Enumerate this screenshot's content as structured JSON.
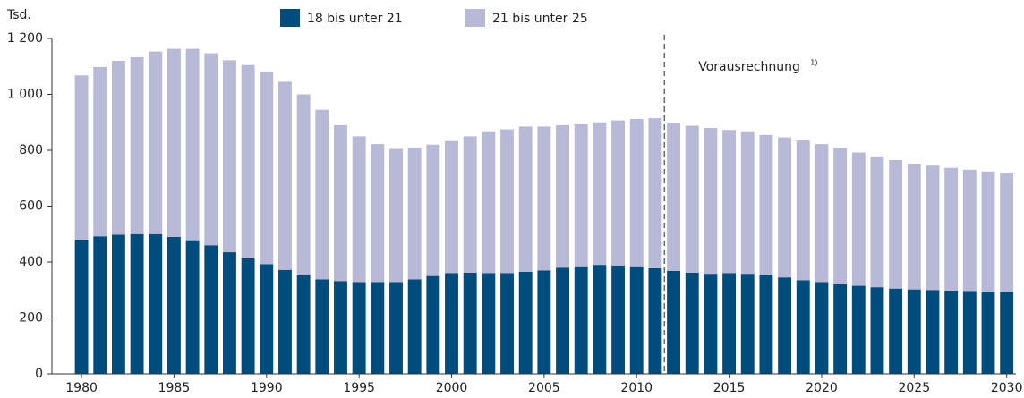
{
  "chart_data": {
    "type": "stacked_bar",
    "y_label": "Tsd.",
    "x": [
      1980,
      1981,
      1982,
      1983,
      1984,
      1985,
      1986,
      1987,
      1988,
      1989,
      1990,
      1991,
      1992,
      1993,
      1994,
      1995,
      1996,
      1997,
      1998,
      1999,
      2000,
      2001,
      2002,
      2003,
      2004,
      2005,
      2006,
      2007,
      2008,
      2009,
      2010,
      2011,
      2012,
      2013,
      2014,
      2015,
      2016,
      2017,
      2018,
      2019,
      2020,
      2021,
      2022,
      2023,
      2024,
      2025,
      2026,
      2027,
      2028,
      2029,
      2030
    ],
    "series": [
      {
        "name": "18 bis unter 21",
        "color": "#004c7d",
        "values": [
          480,
          492,
          498,
          500,
          500,
          490,
          478,
          460,
          435,
          413,
          392,
          372,
          352,
          338,
          332,
          328,
          328,
          328,
          338,
          350,
          360,
          362,
          360,
          360,
          365,
          370,
          380,
          385,
          390,
          388,
          385,
          378,
          368,
          362,
          358,
          360,
          358,
          355,
          345,
          335,
          328,
          320,
          315,
          310,
          305,
          302,
          300,
          298,
          296,
          295,
          293
        ]
      },
      {
        "name": "21 bis unter 25",
        "color": "#b8b9d6",
        "values": [
          588,
          606,
          622,
          633,
          653,
          673,
          685,
          687,
          687,
          692,
          690,
          673,
          648,
          607,
          558,
          522,
          494,
          477,
          472,
          470,
          473,
          488,
          505,
          515,
          520,
          515,
          510,
          508,
          510,
          519,
          527,
          537,
          530,
          526,
          522,
          513,
          507,
          500,
          501,
          500,
          494,
          488,
          477,
          468,
          460,
          450,
          445,
          439,
          434,
          429,
          427
        ]
      }
    ],
    "xlim": [
      1978.4,
      2030.5
    ],
    "xticks": [
      1980,
      1985,
      1990,
      1995,
      2000,
      2005,
      2010,
      2015,
      2020,
      2025,
      2030
    ],
    "ylim": [
      0,
      1200
    ],
    "yticks": [
      0,
      200,
      400,
      600,
      800,
      {
        "value": 1000,
        "label": "1 000"
      },
      {
        "value": 1200,
        "label": "1 200"
      }
    ],
    "annotation": {
      "text": "Vorausrechnung",
      "note": "1)",
      "x": 2011.5
    }
  }
}
